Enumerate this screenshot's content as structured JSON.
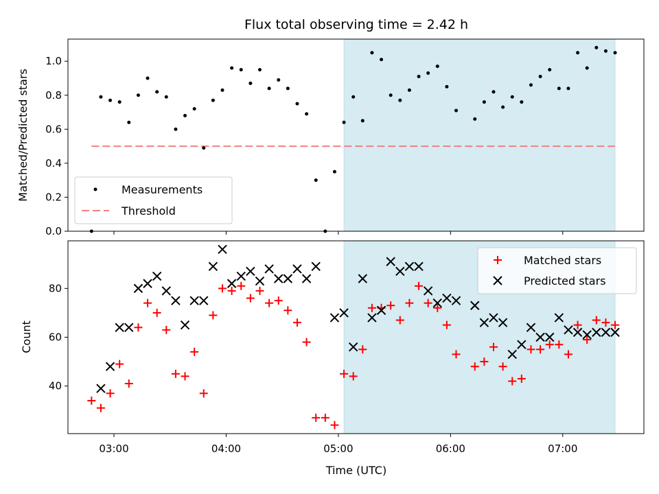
{
  "chart_data": {
    "title": "Flux total observing time = 2.42 h",
    "xlabel": "Time (UTC)",
    "x_ticks": [
      "03:00",
      "04:00",
      "05:00",
      "06:00",
      "07:00"
    ],
    "shaded_region": {
      "x_start": "05:03",
      "x_end": "07:28",
      "color": "#add8e6"
    },
    "panels": [
      {
        "type": "scatter",
        "ylabel": "Matched/Predicted stars",
        "ylim": [
          0,
          1.13
        ],
        "y_ticks": [
          "0.0",
          "0.2",
          "0.4",
          "0.6",
          "0.8",
          "1.0"
        ],
        "legend": {
          "position": "lower-left"
        },
        "series": [
          {
            "name": "Measurements",
            "marker": "dot",
            "color": "#000000",
            "points": [
              [
                "02:48",
                0.0
              ],
              [
                "02:53",
                0.79
              ],
              [
                "02:58",
                0.77
              ],
              [
                "03:03",
                0.76
              ],
              [
                "03:08",
                0.64
              ],
              [
                "03:13",
                0.8
              ],
              [
                "03:18",
                0.9
              ],
              [
                "03:23",
                0.82
              ],
              [
                "03:28",
                0.79
              ],
              [
                "03:33",
                0.6
              ],
              [
                "03:38",
                0.68
              ],
              [
                "03:43",
                0.72
              ],
              [
                "03:48",
                0.49
              ],
              [
                "03:53",
                0.77
              ],
              [
                "03:58",
                0.83
              ],
              [
                "04:03",
                0.96
              ],
              [
                "04:08",
                0.95
              ],
              [
                "04:13",
                0.87
              ],
              [
                "04:18",
                0.95
              ],
              [
                "04:23",
                0.84
              ],
              [
                "04:28",
                0.89
              ],
              [
                "04:33",
                0.84
              ],
              [
                "04:38",
                0.75
              ],
              [
                "04:43",
                0.69
              ],
              [
                "04:48",
                0.3
              ],
              [
                "04:53",
                0.0
              ],
              [
                "04:58",
                0.35
              ],
              [
                "05:03",
                0.64
              ],
              [
                "05:08",
                0.79
              ],
              [
                "05:13",
                0.65
              ],
              [
                "05:18",
                1.05
              ],
              [
                "05:23",
                1.01
              ],
              [
                "05:28",
                0.8
              ],
              [
                "05:33",
                0.77
              ],
              [
                "05:38",
                0.83
              ],
              [
                "05:43",
                0.91
              ],
              [
                "05:48",
                0.93
              ],
              [
                "05:53",
                0.97
              ],
              [
                "05:58",
                0.85
              ],
              [
                "06:03",
                0.71
              ],
              [
                "06:13",
                0.66
              ],
              [
                "06:18",
                0.76
              ],
              [
                "06:23",
                0.82
              ],
              [
                "06:28",
                0.73
              ],
              [
                "06:33",
                0.79
              ],
              [
                "06:38",
                0.76
              ],
              [
                "06:43",
                0.86
              ],
              [
                "06:48",
                0.91
              ],
              [
                "06:53",
                0.95
              ],
              [
                "06:58",
                0.84
              ],
              [
                "07:03",
                0.84
              ],
              [
                "07:08",
                1.05
              ],
              [
                "07:13",
                0.96
              ],
              [
                "07:18",
                1.08
              ],
              [
                "07:23",
                1.06
              ],
              [
                "07:28",
                1.05
              ]
            ]
          },
          {
            "name": "Threshold",
            "marker": "dashed-line",
            "color": "#f08080",
            "points": [
              [
                "02:48",
                0.5
              ],
              [
                "07:28",
                0.5
              ]
            ]
          }
        ]
      },
      {
        "type": "scatter",
        "ylabel": "Count",
        "ylim": [
          20.5,
          99.5
        ],
        "y_ticks": [
          "40",
          "60",
          "80"
        ],
        "legend": {
          "position": "top-right"
        },
        "series": [
          {
            "name": "Matched stars",
            "marker": "plus",
            "color": "#ff0000",
            "points": [
              [
                "02:48",
                34
              ],
              [
                "02:53",
                31
              ],
              [
                "02:58",
                37
              ],
              [
                "03:03",
                49
              ],
              [
                "03:08",
                41
              ],
              [
                "03:13",
                64
              ],
              [
                "03:18",
                74
              ],
              [
                "03:23",
                70
              ],
              [
                "03:28",
                63
              ],
              [
                "03:33",
                45
              ],
              [
                "03:38",
                44
              ],
              [
                "03:43",
                54
              ],
              [
                "03:48",
                37
              ],
              [
                "03:53",
                69
              ],
              [
                "03:58",
                80
              ],
              [
                "04:03",
                79
              ],
              [
                "04:08",
                81
              ],
              [
                "04:13",
                76
              ],
              [
                "04:18",
                79
              ],
              [
                "04:23",
                74
              ],
              [
                "04:28",
                75
              ],
              [
                "04:33",
                71
              ],
              [
                "04:38",
                66
              ],
              [
                "04:43",
                58
              ],
              [
                "04:48",
                27
              ],
              [
                "04:53",
                27
              ],
              [
                "04:58",
                24
              ],
              [
                "05:03",
                45
              ],
              [
                "05:08",
                44
              ],
              [
                "05:13",
                55
              ],
              [
                "05:18",
                72
              ],
              [
                "05:23",
                72
              ],
              [
                "05:28",
                73
              ],
              [
                "05:33",
                67
              ],
              [
                "05:38",
                74
              ],
              [
                "05:43",
                81
              ],
              [
                "05:48",
                74
              ],
              [
                "05:53",
                72
              ],
              [
                "05:58",
                65
              ],
              [
                "06:03",
                53
              ],
              [
                "06:13",
                48
              ],
              [
                "06:18",
                50
              ],
              [
                "06:23",
                56
              ],
              [
                "06:28",
                48
              ],
              [
                "06:33",
                42
              ],
              [
                "06:38",
                43
              ],
              [
                "06:43",
                55
              ],
              [
                "06:48",
                55
              ],
              [
                "06:53",
                57
              ],
              [
                "06:58",
                57
              ],
              [
                "07:03",
                53
              ],
              [
                "07:08",
                65
              ],
              [
                "07:13",
                59
              ],
              [
                "07:18",
                67
              ],
              [
                "07:23",
                66
              ],
              [
                "07:28",
                65
              ]
            ]
          },
          {
            "name": "Predicted stars",
            "marker": "x",
            "color": "#000000",
            "points": [
              [
                "02:53",
                39
              ],
              [
                "02:58",
                48
              ],
              [
                "03:03",
                64
              ],
              [
                "03:08",
                64
              ],
              [
                "03:13",
                80
              ],
              [
                "03:18",
                82
              ],
              [
                "03:23",
                85
              ],
              [
                "03:28",
                79
              ],
              [
                "03:33",
                75
              ],
              [
                "03:38",
                65
              ],
              [
                "03:43",
                75
              ],
              [
                "03:48",
                75
              ],
              [
                "03:53",
                89
              ],
              [
                "03:58",
                96
              ],
              [
                "04:03",
                82
              ],
              [
                "04:08",
                85
              ],
              [
                "04:13",
                87
              ],
              [
                "04:18",
                83
              ],
              [
                "04:23",
                88
              ],
              [
                "04:28",
                84
              ],
              [
                "04:33",
                84
              ],
              [
                "04:38",
                88
              ],
              [
                "04:43",
                84
              ],
              [
                "04:48",
                89
              ],
              [
                "04:58",
                68
              ],
              [
                "05:03",
                70
              ],
              [
                "05:08",
                56
              ],
              [
                "05:13",
                84
              ],
              [
                "05:18",
                68
              ],
              [
                "05:23",
                71
              ],
              [
                "05:28",
                91
              ],
              [
                "05:33",
                87
              ],
              [
                "05:38",
                89
              ],
              [
                "05:43",
                89
              ],
              [
                "05:48",
                79
              ],
              [
                "05:53",
                74
              ],
              [
                "05:58",
                76
              ],
              [
                "06:03",
                75
              ],
              [
                "06:13",
                73
              ],
              [
                "06:18",
                66
              ],
              [
                "06:23",
                68
              ],
              [
                "06:28",
                66
              ],
              [
                "06:33",
                53
              ],
              [
                "06:38",
                57
              ],
              [
                "06:43",
                64
              ],
              [
                "06:48",
                60
              ],
              [
                "06:53",
                60
              ],
              [
                "06:58",
                68
              ],
              [
                "07:03",
                63
              ],
              [
                "07:08",
                62
              ],
              [
                "07:13",
                61
              ],
              [
                "07:18",
                62
              ],
              [
                "07:23",
                62
              ],
              [
                "07:28",
                62
              ]
            ]
          }
        ]
      }
    ]
  }
}
